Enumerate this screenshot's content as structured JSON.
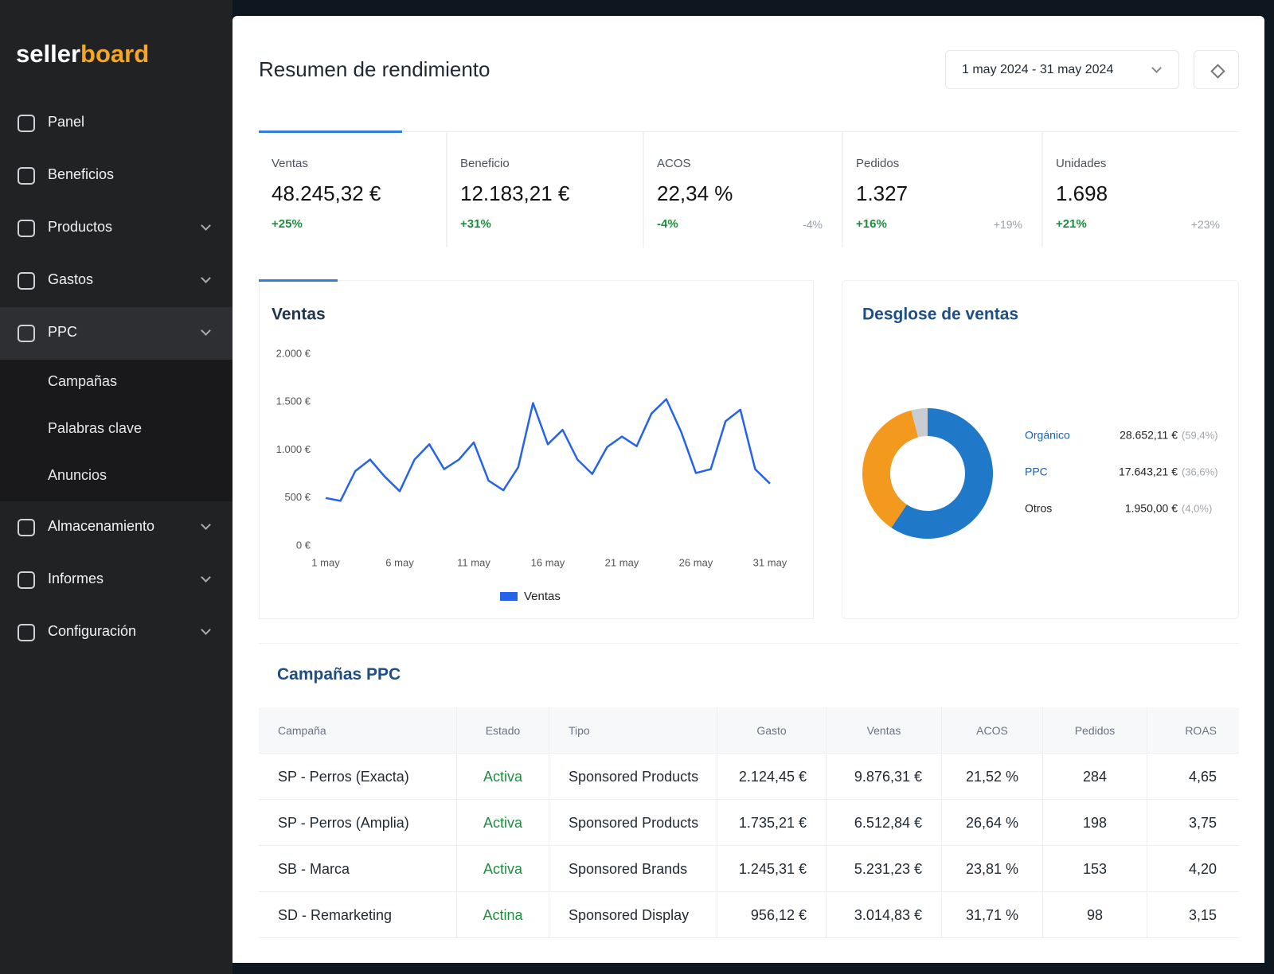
{
  "sidebar": {
    "logo": [
      "seller",
      "board"
    ],
    "menu": [
      {
        "label": "Panel"
      },
      {
        "label": "Beneficios"
      },
      {
        "label": "Productos",
        "expandable": true
      },
      {
        "label": "Gastos",
        "expandable": true
      },
      {
        "label": "PPC",
        "expandable": true,
        "active": true,
        "children": [
          "Campañas",
          "Palabras clave",
          "Anuncios"
        ]
      },
      {
        "label": "Almacenamiento",
        "expandable": true
      },
      {
        "label": "Informes",
        "expandable": true
      },
      {
        "label": "Configuración",
        "expandable": true
      }
    ]
  },
  "header": {
    "title": "Resumen de rendimiento",
    "date_range": "1 may 2024 - 31 may 2024"
  },
  "kpis": [
    {
      "label": "Ventas",
      "value": "48.245,32 €",
      "change": "+25%"
    },
    {
      "label": "Beneficio",
      "value": "12.183,21 €",
      "change": "+31%"
    },
    {
      "label": "ACOS",
      "value": "22,34 %",
      "change": "-4%",
      "compare": "-4%"
    },
    {
      "label": "Pedidos",
      "value": "1.327",
      "change": "+16%",
      "compare": "+19%"
    },
    {
      "label": "Unidades",
      "value": "1.698",
      "change": "+21%",
      "compare": "+23%"
    }
  ],
  "chart_data": [
    {
      "type": "line",
      "title": "Ventas",
      "categories": [
        "1 may",
        null,
        null,
        null,
        null,
        "6 may",
        null,
        null,
        null,
        null,
        "11 may",
        null,
        null,
        null,
        null,
        "16 may",
        null,
        null,
        null,
        null,
        "21 may",
        null,
        null,
        null,
        null,
        "26 may",
        null,
        null,
        null,
        null,
        "31 may"
      ],
      "series": [
        {
          "name": "Ventas",
          "color": "#2563eb",
          "values": [
            500,
            470,
            780,
            900,
            720,
            570,
            900,
            1060,
            800,
            900,
            1080,
            680,
            580,
            820,
            1490,
            1060,
            1210,
            900,
            750,
            1030,
            1140,
            1040,
            1380,
            1530,
            1190,
            760,
            800,
            1300,
            1420,
            800,
            650
          ]
        }
      ],
      "ylim": [
        0,
        2000
      ],
      "yticks": [
        {
          "value": 0,
          "label": "0 €"
        },
        {
          "value": 500,
          "label": "500 €"
        },
        {
          "value": 1000,
          "label": "1.000 €"
        },
        {
          "value": 1500,
          "label": "1.500 €"
        },
        {
          "value": 2000,
          "label": "2.000 €"
        }
      ],
      "grid": false,
      "legend": "bottom"
    },
    {
      "type": "donut",
      "title": "Desglose de ventas",
      "categories": [
        "Orgánico",
        "PPC",
        "Otros"
      ],
      "values": [
        28652.11,
        17643.21,
        1950.0
      ],
      "value_labels": [
        "28.652,11 €",
        "17.643,21 €",
        "1.950,00 €"
      ],
      "share_labels": [
        "(59,4%)",
        "(36,6%)",
        "(4,0%)"
      ],
      "colors": [
        "#1f78c8",
        "#f39a1e",
        "#c9cdd1"
      ]
    }
  ],
  "table": {
    "title": "Campañas PPC",
    "columns": [
      "Campaña",
      "Estado",
      "Tipo",
      "Gasto",
      "Ventas",
      "ACOS",
      "Pedidos",
      "ROAS"
    ],
    "rows": [
      [
        "SP - Perros (Exacta)",
        "Activa",
        "Sponsored Products",
        "2.124,45 €",
        "9.876,31 €",
        "21,52 %",
        "284",
        "4,65"
      ],
      [
        "SP - Perros (Amplia)",
        "Activa",
        "Sponsored Products",
        "1.735,21 €",
        "6.512,84 €",
        "26,64 %",
        "198",
        "3,75"
      ],
      [
        "SB - Marca",
        "Activa",
        "Sponsored Brands",
        "1.245,31 €",
        "5.231,23 €",
        "23,81 %",
        "153",
        "4,20"
      ],
      [
        "SD - Remarketing",
        "Actina",
        "Sponsored Display",
        "956,12 €",
        "3.014,83 €",
        "31,71 %",
        "98",
        "3,15"
      ]
    ]
  }
}
